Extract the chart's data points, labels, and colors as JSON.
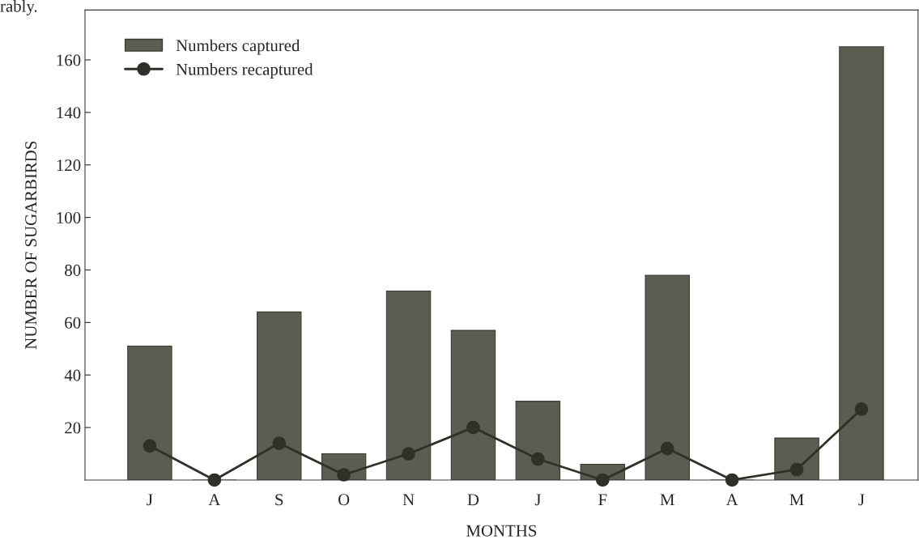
{
  "chart_data": {
    "type": "bar",
    "xlabel": "MONTHS",
    "ylabel": "NUMBER OF SUGARBIRDS",
    "annotations": [
      "rably."
    ],
    "categories": [
      "J",
      "A",
      "S",
      "O",
      "N",
      "D",
      "J",
      "F",
      "M",
      "A",
      "M",
      "J"
    ],
    "series": [
      {
        "name": "Numbers captured",
        "color": "#5a5d4f",
        "values": [
          51,
          0,
          64,
          10,
          72,
          57,
          30,
          6,
          78,
          0,
          16,
          165
        ]
      },
      {
        "name": "Numbers recaptured",
        "type": "line",
        "color": "#2f3128",
        "marker": "circle",
        "values": [
          13,
          0,
          14,
          2,
          10,
          20,
          8,
          0,
          12,
          0,
          4,
          27
        ]
      }
    ],
    "ylim": [
      0,
      179
    ],
    "yticks": [
      20,
      40,
      60,
      80,
      100,
      120,
      140,
      160
    ],
    "legend": "top left",
    "grid": false
  }
}
